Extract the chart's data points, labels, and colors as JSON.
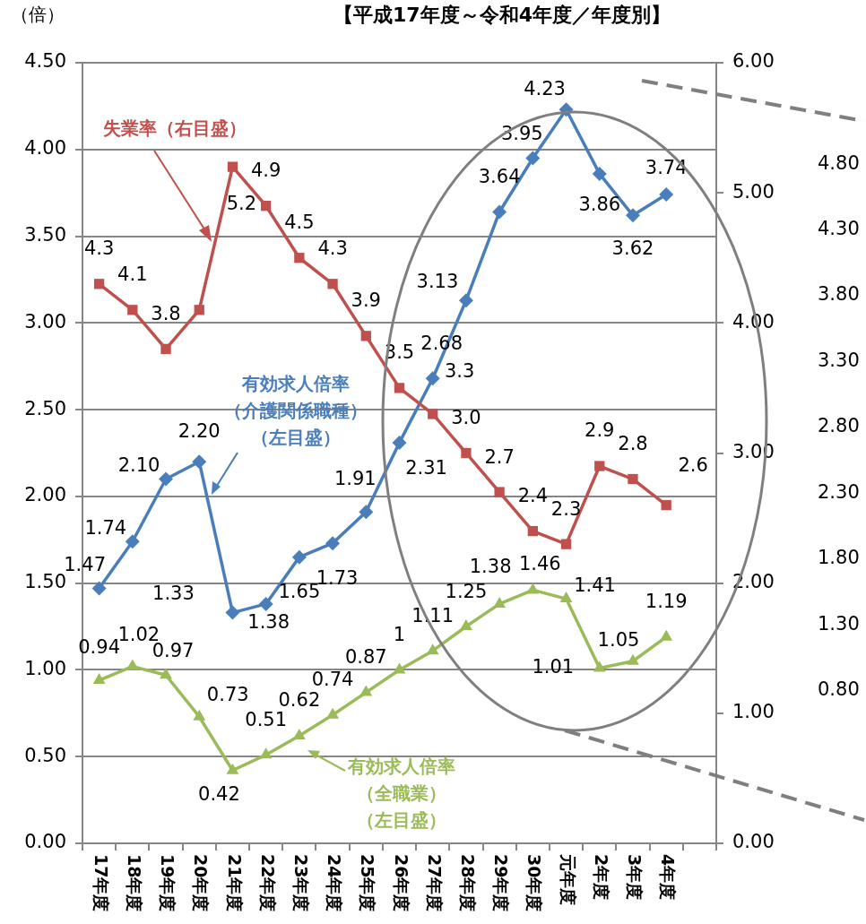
{
  "chart_data": {
    "type": "line",
    "title": "【平成17年度～令和4年度／年度別】",
    "ylabel": "（倍）",
    "categories": [
      "17年度",
      "18年度",
      "19年度",
      "20年度",
      "21年度",
      "22年度",
      "23年度",
      "24年度",
      "25年度",
      "26年度",
      "27年度",
      "28年度",
      "29年度",
      "30年度",
      "元年度",
      "2年度",
      "3年度",
      "4年度",
      null
    ],
    "series": [
      {
        "name": "失業率（右目盛）",
        "color": "#c0504d",
        "axis": "y2",
        "marker": "square",
        "values": [
          4.3,
          4.1,
          3.8,
          4.1,
          5.2,
          4.9,
          4.5,
          4.3,
          3.9,
          3.5,
          3.3,
          3.0,
          2.7,
          2.4,
          2.3,
          2.9,
          2.8,
          2.6,
          null
        ],
        "value_labels": [
          "4.3",
          "4.1",
          "3.8",
          null,
          "5.2",
          "4.9",
          "4.5",
          "4.3",
          "3.9",
          "3.5",
          "3.3",
          "3.0",
          "2.7",
          "2.4",
          "2.3",
          "2.9",
          "2.8",
          "2.6",
          null
        ]
      },
      {
        "name": "有効求人倍率（介護関係職種）（左目盛）",
        "color": "#4a7ebb",
        "marker": "diamond",
        "values": [
          1.47,
          1.74,
          2.1,
          2.2,
          1.33,
          1.38,
          1.65,
          1.73,
          1.91,
          2.31,
          2.68,
          3.13,
          3.64,
          3.95,
          4.23,
          3.86,
          3.62,
          3.74,
          null
        ],
        "value_labels": [
          "1.47",
          "1.74",
          "2.10",
          "2.20",
          "1.33",
          "1.38",
          "1.65",
          "1.73",
          "1.91",
          "2.31",
          "2.68",
          "3.13",
          "3.64",
          "3.95",
          "4.23",
          "3.86",
          "3.62",
          "3.74",
          null
        ]
      },
      {
        "name": "有効求人倍率（全職業）（左目盛）",
        "color": "#9bbb59",
        "marker": "triangle",
        "values": [
          0.94,
          1.02,
          0.97,
          0.73,
          0.42,
          0.51,
          0.62,
          0.74,
          0.87,
          1,
          1.11,
          1.25,
          1.38,
          1.46,
          1.41,
          1.01,
          1.05,
          1.19,
          null
        ],
        "value_labels": [
          "0.94",
          "1.02",
          "0.97",
          "0.73",
          "0.42",
          "0.51",
          "0.62",
          "0.74",
          "0.87",
          "1",
          "1.11",
          "1.25",
          "1.38",
          "1.46",
          "1.41",
          "1.01",
          "1.05",
          "1.19",
          null
        ]
      }
    ],
    "ylim": [
      0,
      4.5
    ],
    "yticks": [
      {
        "value": 0,
        "label": "0.00"
      },
      {
        "value": 0.5,
        "label": "0.50"
      },
      {
        "value": 1,
        "label": "1.00"
      },
      {
        "value": 1.5,
        "label": "1.50"
      },
      {
        "value": 2,
        "label": "2.00"
      },
      {
        "value": 2.5,
        "label": "2.50"
      },
      {
        "value": 3,
        "label": "3.00"
      },
      {
        "value": 3.5,
        "label": "3.50"
      },
      {
        "value": 4,
        "label": "4.00"
      },
      {
        "value": 4.5,
        "label": "4.50"
      }
    ],
    "y2lim": [
      0,
      6
    ],
    "y2ticks": [
      {
        "value": 0,
        "label": "0.00"
      },
      {
        "value": 1,
        "label": "1.00"
      },
      {
        "value": 2,
        "label": "2.00"
      },
      {
        "value": 3,
        "label": "3.00"
      },
      {
        "value": 4,
        "label": "4.00"
      },
      {
        "value": 5,
        "label": "5.00"
      },
      {
        "value": 6,
        "label": "6.00"
      }
    ],
    "y3lim": [
      -0.36,
      5.57
    ],
    "y3ticks": [
      {
        "value": 0.8,
        "label": "0.80"
      },
      {
        "value": 1.3,
        "label": "1.30"
      },
      {
        "value": 1.8,
        "label": "1.80"
      },
      {
        "value": 2.3,
        "label": "2.30"
      },
      {
        "value": 2.8,
        "label": "2.80"
      },
      {
        "value": 3.3,
        "label": "3.30"
      },
      {
        "value": 3.8,
        "label": "3.80"
      },
      {
        "value": 4.3,
        "label": "4.30"
      },
      {
        "value": 4.8,
        "label": "4.80"
      }
    ],
    "grid": "y"
  }
}
